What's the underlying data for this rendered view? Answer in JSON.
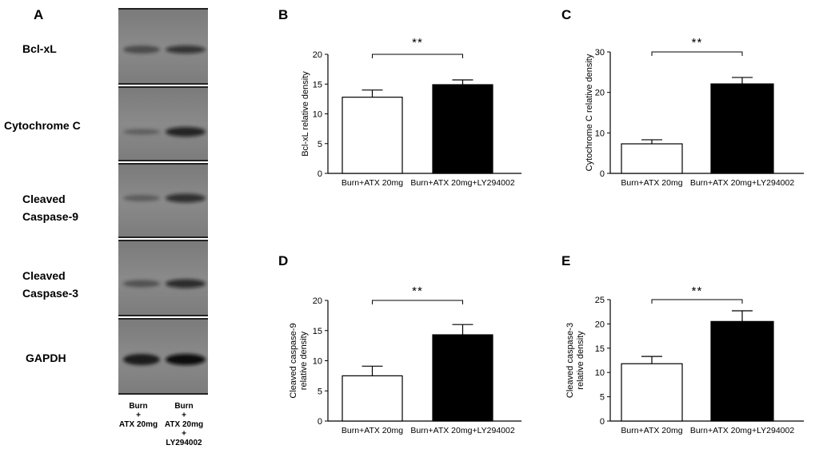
{
  "panel_a": {
    "letter": "A",
    "blots": [
      {
        "name": "Bcl-xL",
        "label_lines": [
          "Bcl-xL"
        ]
      },
      {
        "name": "Cytochrome C",
        "label_lines": [
          "Cytochrome  C"
        ]
      },
      {
        "name": "Cleaved Caspase-9",
        "label_lines": [
          "Cleaved",
          "Caspase-9"
        ]
      },
      {
        "name": "Cleaved Caspase-3",
        "label_lines": [
          "Cleaved",
          "Caspase-3"
        ]
      },
      {
        "name": "GAPDH",
        "label_lines": [
          "GAPDH"
        ]
      }
    ],
    "lanes": [
      {
        "label_lines": [
          "Burn",
          "+",
          "ATX 20mg"
        ]
      },
      {
        "label_lines": [
          "Burn",
          "+",
          "ATX 20mg",
          "+",
          "LY294002"
        ]
      }
    ]
  },
  "chart_data": [
    {
      "panel": "B",
      "type": "bar",
      "categories": [
        "Burn+ATX 20mg",
        "Burn+ATX 20mg+LY294002"
      ],
      "values": [
        12.8,
        14.9
      ],
      "errors": [
        1.2,
        0.8
      ],
      "bar_colors": [
        "#ffffff",
        "#000000"
      ],
      "ylabel_lines": [
        "Bcl-xL relative density"
      ],
      "ylim": [
        0,
        20
      ],
      "yticks": [
        0,
        5,
        10,
        15,
        20
      ],
      "significance": "**"
    },
    {
      "panel": "C",
      "type": "bar",
      "categories": [
        "Burn+ATX 20mg",
        "Burn+ATX 20mg+LY294002"
      ],
      "values": [
        7.3,
        22.1
      ],
      "errors": [
        1.0,
        1.6
      ],
      "bar_colors": [
        "#ffffff",
        "#000000"
      ],
      "ylabel_lines": [
        "Cytochrome C relative density"
      ],
      "ylim": [
        0,
        30
      ],
      "yticks": [
        0,
        10,
        20,
        30
      ],
      "significance": "**"
    },
    {
      "panel": "D",
      "type": "bar",
      "categories": [
        "Burn+ATX 20mg",
        "Burn+ATX 20mg+LY294002"
      ],
      "values": [
        7.5,
        14.3
      ],
      "errors": [
        1.6,
        1.7
      ],
      "bar_colors": [
        "#ffffff",
        "#000000"
      ],
      "ylabel_lines": [
        "Cleaved caspase-9",
        "relative density"
      ],
      "ylim": [
        0,
        20
      ],
      "yticks": [
        0,
        5,
        10,
        15,
        20
      ],
      "significance": "**"
    },
    {
      "panel": "E",
      "type": "bar",
      "categories": [
        "Burn+ATX 20mg",
        "Burn+ATX 20mg+LY294002"
      ],
      "values": [
        11.8,
        20.5
      ],
      "errors": [
        1.5,
        2.2
      ],
      "bar_colors": [
        "#ffffff",
        "#000000"
      ],
      "ylabel_lines": [
        "Cleaved caspase-3",
        "relative density"
      ],
      "ylim": [
        0,
        25
      ],
      "yticks": [
        0,
        5,
        10,
        15,
        20,
        25
      ],
      "significance": "**"
    }
  ]
}
